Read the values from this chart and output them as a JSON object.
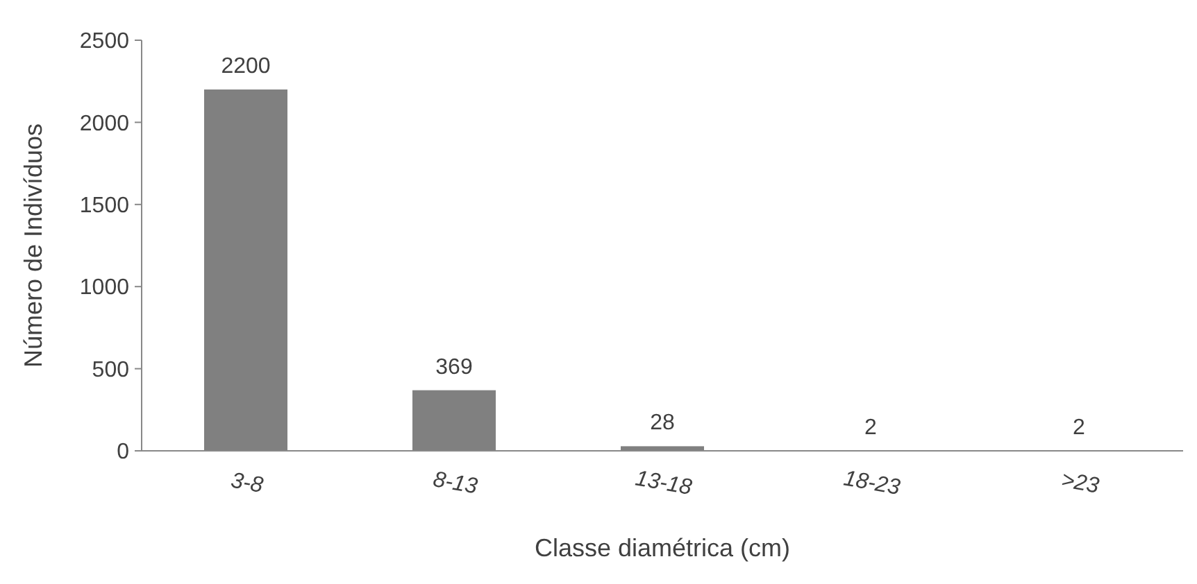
{
  "chart_data": {
    "type": "bar",
    "xlabel": "Classe diamétrica (cm)",
    "ylabel": "Número de Indivíduos",
    "categories": [
      "3-8",
      "8-13",
      "13-18",
      "18-23",
      ">23"
    ],
    "values": [
      2200,
      369,
      28,
      2,
      2
    ],
    "color": "#808080",
    "ylim": [
      0,
      2500
    ],
    "yticks": [
      0,
      500,
      1000,
      1500,
      2000,
      2500
    ],
    "grid": false,
    "data_labels": true
  }
}
